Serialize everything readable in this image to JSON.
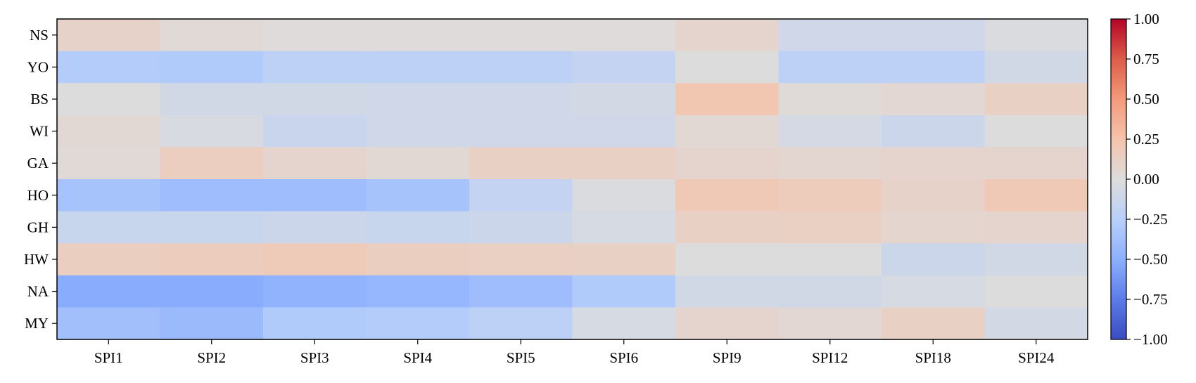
{
  "chart_data": {
    "type": "heatmap",
    "title": "",
    "xlabel": "",
    "ylabel": "",
    "x_categories": [
      "SPI1",
      "SPI2",
      "SPI3",
      "SPI4",
      "SPI5",
      "SPI6",
      "SPI9",
      "SPI12",
      "SPI18",
      "SPI24"
    ],
    "y_categories": [
      "NS",
      "YO",
      "BS",
      "WI",
      "GA",
      "HO",
      "GH",
      "HW",
      "NA",
      "MY"
    ],
    "values": [
      [
        0.1,
        0.03,
        0.01,
        0.01,
        0.01,
        0.01,
        0.08,
        -0.1,
        -0.1,
        -0.03
      ],
      [
        -0.28,
        -0.3,
        -0.22,
        -0.22,
        -0.22,
        -0.18,
        0.0,
        -0.22,
        -0.22,
        -0.08
      ],
      [
        0.0,
        -0.08,
        -0.08,
        -0.1,
        -0.1,
        -0.07,
        0.22,
        0.02,
        0.05,
        0.12
      ],
      [
        0.04,
        -0.04,
        -0.14,
        -0.1,
        -0.1,
        -0.1,
        0.04,
        -0.06,
        -0.12,
        0.0
      ],
      [
        0.03,
        0.15,
        0.08,
        0.04,
        0.12,
        0.12,
        0.08,
        0.06,
        0.08,
        0.08
      ],
      [
        -0.35,
        -0.4,
        -0.4,
        -0.35,
        -0.18,
        -0.02,
        0.2,
        0.17,
        0.1,
        0.2
      ],
      [
        -0.15,
        -0.15,
        -0.12,
        -0.15,
        -0.12,
        -0.05,
        0.12,
        0.13,
        0.07,
        0.08
      ],
      [
        0.14,
        0.16,
        0.18,
        0.14,
        0.13,
        0.12,
        0.0,
        0.0,
        -0.12,
        -0.08
      ],
      [
        -0.52,
        -0.52,
        -0.48,
        -0.45,
        -0.4,
        -0.3,
        -0.09,
        -0.09,
        -0.05,
        0.0
      ],
      [
        -0.38,
        -0.42,
        -0.3,
        -0.28,
        -0.22,
        -0.05,
        0.08,
        0.05,
        0.12,
        -0.07
      ]
    ],
    "colorbar": {
      "colormap": "coolwarm",
      "vmin": -1.0,
      "vmax": 1.0,
      "ticks": [
        "1.00",
        "0.75",
        "0.50",
        "0.25",
        "0.00",
        "−0.25",
        "−0.50",
        "−0.75",
        "−1.00"
      ]
    },
    "grid": false,
    "legend": "colorbar-right"
  }
}
